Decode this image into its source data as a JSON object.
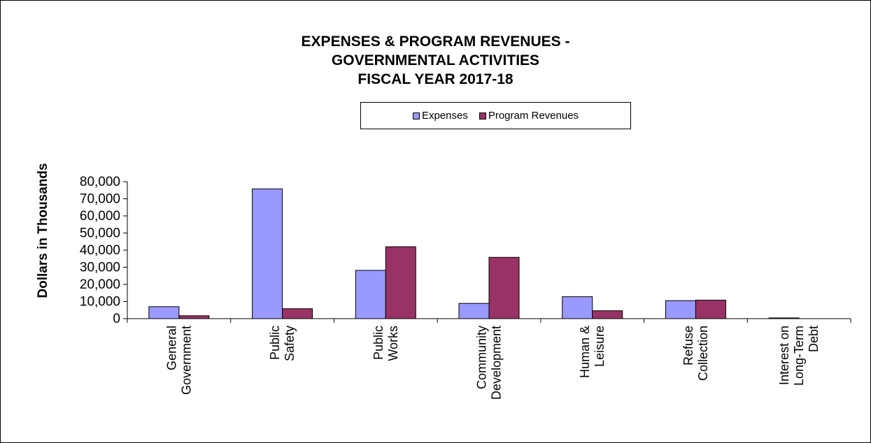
{
  "chart_data": {
    "type": "bar",
    "title": [
      "EXPENSES & PROGRAM REVENUES -",
      "GOVERNMENTAL ACTIVITIES",
      "FISCAL YEAR 2017-18"
    ],
    "ylabel": "Dollars in Thousands",
    "xlabel": "",
    "ylim": [
      0,
      80000
    ],
    "yticks": [
      0,
      10000,
      20000,
      30000,
      40000,
      50000,
      60000,
      70000,
      80000
    ],
    "ytick_labels": [
      "0",
      "10,000",
      "20,000",
      "30,000",
      "40,000",
      "50,000",
      "60,000",
      "70,000",
      "80,000"
    ],
    "categories": [
      [
        "General",
        "Government"
      ],
      [
        "Public",
        "Safety"
      ],
      [
        "Public",
        "Works"
      ],
      [
        "Community",
        "Development"
      ],
      [
        "Human &",
        "Leisure"
      ],
      [
        "Refuse",
        "Collection"
      ],
      [
        "Interest on",
        "Long-Term",
        "Debt"
      ]
    ],
    "series": [
      {
        "name": "Expenses",
        "color": "#9999ff",
        "values": [
          7000,
          75800,
          28200,
          8900,
          12800,
          10500,
          400
        ]
      },
      {
        "name": "Program Revenues",
        "color": "#993366",
        "values": [
          1700,
          5800,
          42000,
          35800,
          4600,
          10800,
          0
        ]
      }
    ],
    "legend_position": "top-center",
    "grid": false
  }
}
